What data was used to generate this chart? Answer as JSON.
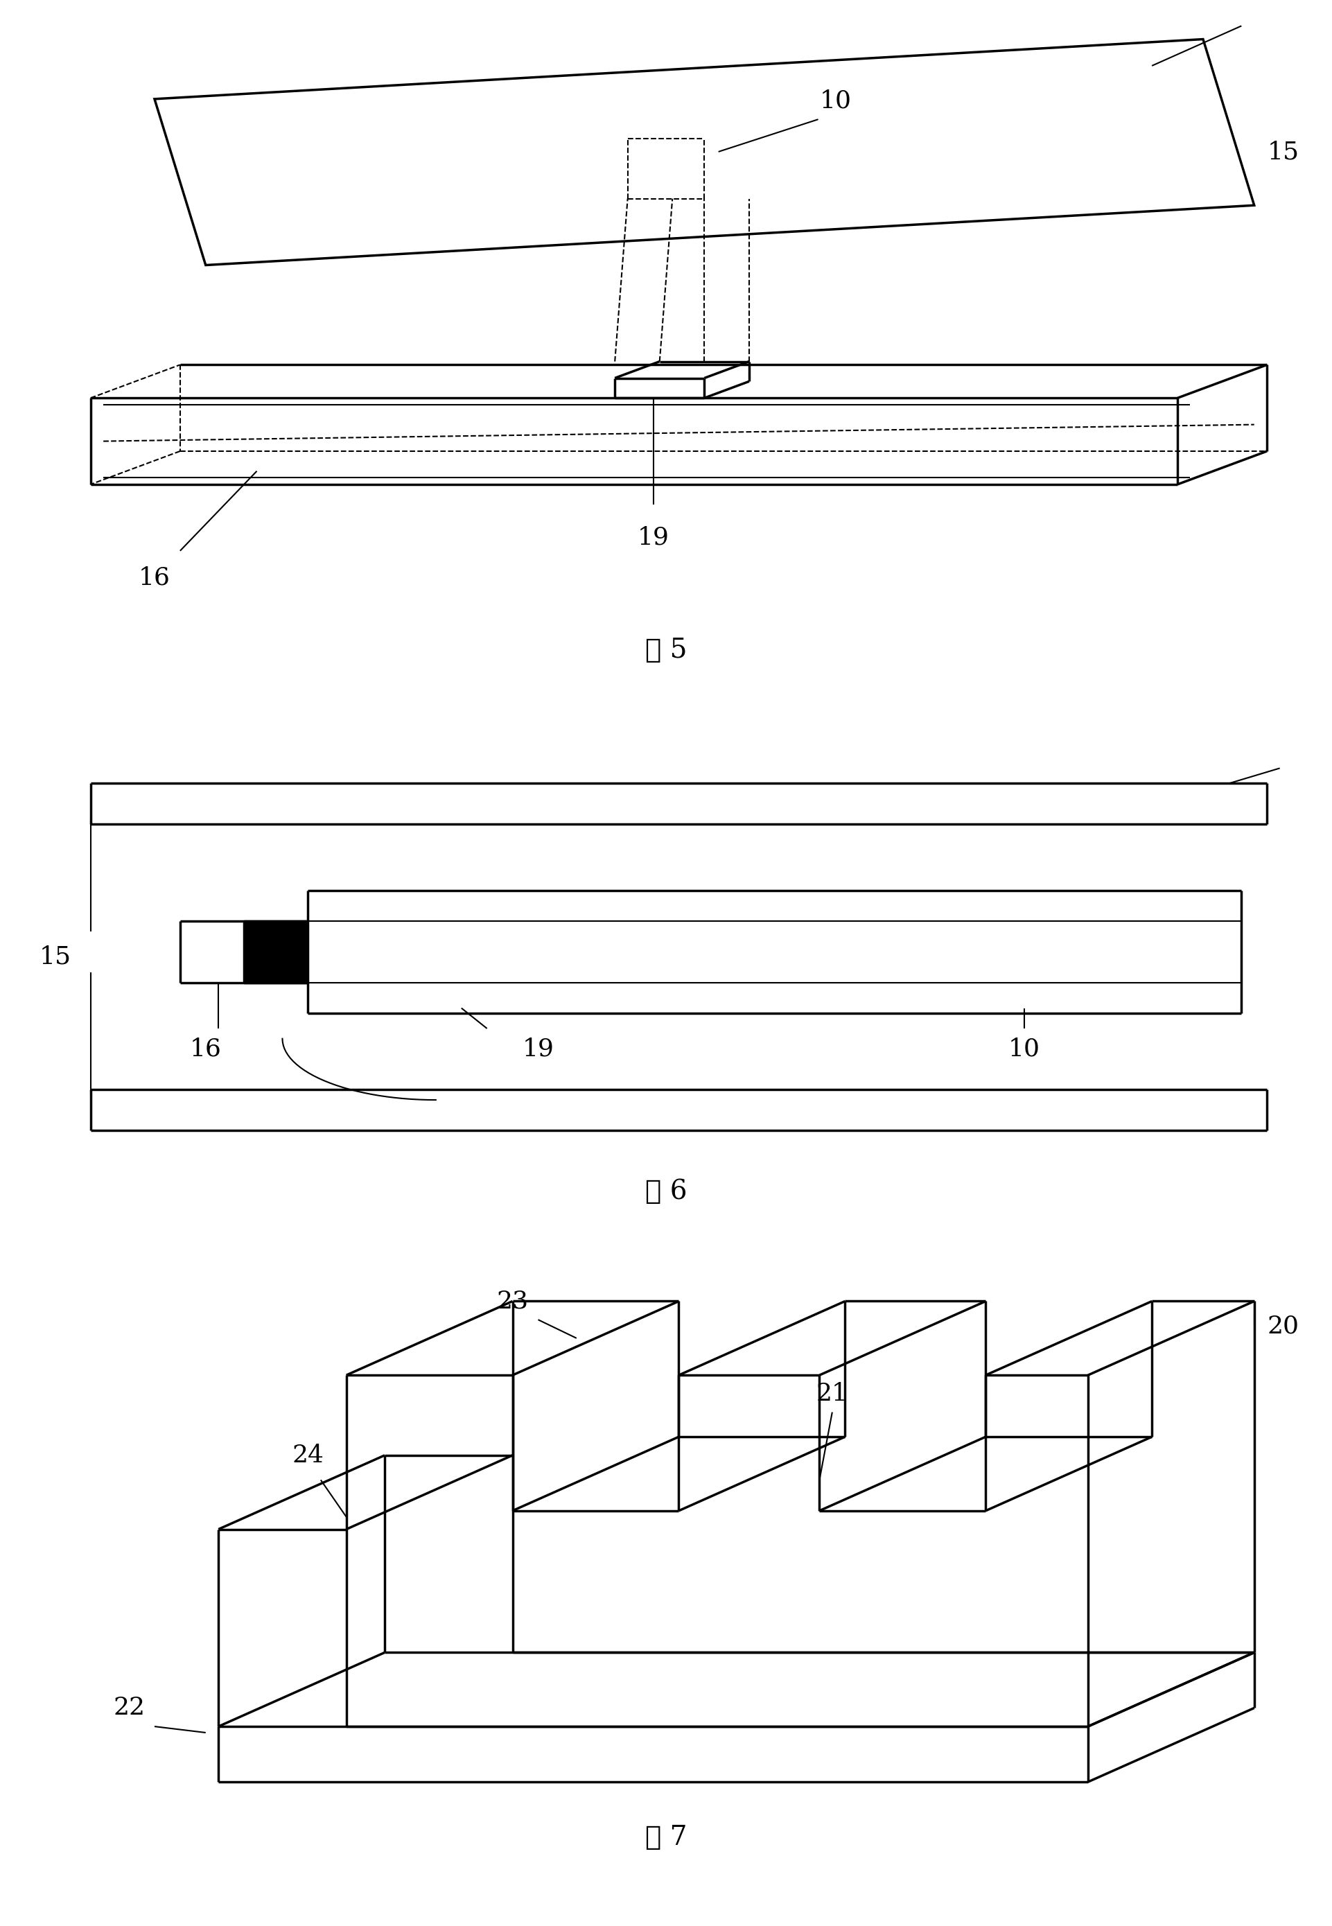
{
  "fig_width": 19.22,
  "fig_height": 27.79,
  "bg_color": "#ffffff",
  "line_color": "#000000",
  "lw_thin": 1.5,
  "lw_thick": 2.5,
  "label_fontsize": 28,
  "number_fontsize": 26,
  "fig5_label": "图 5",
  "fig6_label": "图 6",
  "fig7_label": "图 7"
}
